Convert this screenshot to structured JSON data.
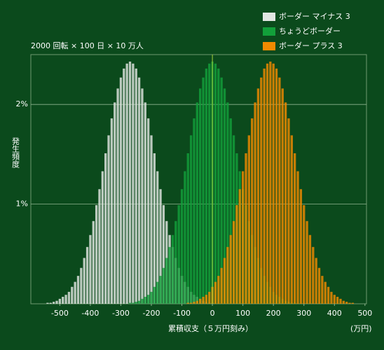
{
  "chart_data": {
    "type": "histogram",
    "subtitle": "2000 回転 × 100 日 × 10 万人",
    "ylabel": "発生頻度",
    "xlabel": "累積収支（５万円刻み）",
    "xunit": "(万円)",
    "bins": [
      -585,
      -575,
      -565,
      -555,
      -545,
      -535,
      -525,
      -515,
      -505,
      -495,
      -485,
      -475,
      -465,
      -455,
      -445,
      -435,
      -425,
      -415,
      -405,
      -395,
      -385,
      -375,
      -365,
      -355,
      -345,
      -335,
      -325,
      -315,
      -305,
      -295,
      -285,
      -275,
      -265,
      -255,
      -245,
      -235,
      -225,
      -215,
      -205,
      -195,
      -185,
      -175,
      -165,
      -155,
      -145,
      -135,
      -125,
      -115,
      -105,
      -95,
      -85,
      -75,
      -65,
      -55,
      -45,
      -35,
      -25,
      -15,
      -5,
      5,
      15,
      25,
      35,
      45,
      55,
      65,
      75,
      85,
      95,
      105,
      115,
      125,
      135,
      145,
      155,
      165,
      175,
      185,
      195,
      205,
      215,
      225,
      235,
      245,
      255,
      265,
      275,
      285,
      295,
      305,
      315,
      325,
      335,
      345,
      355,
      365,
      375,
      385,
      395,
      405,
      415,
      425,
      435,
      445,
      455,
      465,
      475,
      485,
      495
    ],
    "series": [
      {
        "name": "ボーダー マイナス 3",
        "color": "#e2e6e2",
        "values": [
          0,
          0,
          0,
          0,
          0.01,
          0.01,
          0.02,
          0.03,
          0.05,
          0.07,
          0.09,
          0.12,
          0.17,
          0.22,
          0.28,
          0.36,
          0.46,
          0.57,
          0.69,
          0.83,
          0.99,
          1.15,
          1.33,
          1.51,
          1.69,
          1.86,
          2.02,
          2.16,
          2.27,
          2.36,
          2.41,
          2.43,
          2.41,
          2.36,
          2.27,
          2.16,
          2.02,
          1.86,
          1.69,
          1.51,
          1.33,
          1.15,
          0.99,
          0.83,
          0.69,
          0.57,
          0.46,
          0.36,
          0.28,
          0.22,
          0.17,
          0.12,
          0.09,
          0.07,
          0.05,
          0.03,
          0.02,
          0.01,
          0.01,
          0,
          0,
          0,
          0,
          0,
          0,
          0,
          0,
          0,
          0,
          0,
          0,
          0,
          0,
          0,
          0,
          0,
          0,
          0,
          0,
          0,
          0,
          0,
          0,
          0,
          0,
          0,
          0,
          0,
          0,
          0,
          0,
          0,
          0,
          0,
          0,
          0,
          0,
          0,
          0,
          0,
          0,
          0,
          0,
          0,
          0,
          0,
          0,
          0
        ]
      },
      {
        "name": "ちょうどボーダー",
        "color": "#12a03a",
        "values": [
          0,
          0,
          0,
          0,
          0,
          0,
          0,
          0,
          0,
          0,
          0,
          0,
          0,
          0,
          0,
          0,
          0,
          0,
          0,
          0,
          0,
          0,
          0,
          0,
          0,
          0,
          0,
          0,
          0,
          0,
          0,
          0.01,
          0.01,
          0.02,
          0.03,
          0.05,
          0.07,
          0.09,
          0.12,
          0.17,
          0.22,
          0.28,
          0.36,
          0.46,
          0.57,
          0.69,
          0.83,
          0.99,
          1.15,
          1.33,
          1.51,
          1.69,
          1.86,
          2.02,
          2.16,
          2.27,
          2.36,
          2.41,
          2.43,
          2.41,
          2.36,
          2.27,
          2.16,
          2.02,
          1.86,
          1.69,
          1.51,
          1.33,
          1.15,
          0.99,
          0.83,
          0.69,
          0.57,
          0.46,
          0.36,
          0.28,
          0.22,
          0.17,
          0.12,
          0.09,
          0.07,
          0.05,
          0.03,
          0.02,
          0.01,
          0.01,
          0,
          0,
          0,
          0,
          0,
          0,
          0,
          0,
          0,
          0,
          0,
          0,
          0,
          0,
          0,
          0,
          0,
          0,
          0,
          0,
          0,
          0
        ]
      },
      {
        "name": "ボーダー プラス 3",
        "color": "#f08a00",
        "values": [
          0,
          0,
          0,
          0,
          0,
          0,
          0,
          0,
          0,
          0,
          0,
          0,
          0,
          0,
          0,
          0,
          0,
          0,
          0,
          0,
          0,
          0,
          0,
          0,
          0,
          0,
          0,
          0,
          0,
          0,
          0,
          0,
          0,
          0,
          0,
          0,
          0,
          0,
          0,
          0,
          0,
          0,
          0,
          0,
          0,
          0,
          0,
          0,
          0,
          0,
          0.01,
          0.01,
          0.02,
          0.03,
          0.05,
          0.07,
          0.09,
          0.12,
          0.17,
          0.22,
          0.28,
          0.36,
          0.46,
          0.57,
          0.69,
          0.83,
          0.99,
          1.15,
          1.33,
          1.51,
          1.69,
          1.86,
          2.02,
          2.16,
          2.27,
          2.36,
          2.41,
          2.43,
          2.41,
          2.36,
          2.27,
          2.16,
          2.02,
          1.86,
          1.69,
          1.51,
          1.33,
          1.15,
          0.99,
          0.83,
          0.69,
          0.57,
          0.46,
          0.36,
          0.28,
          0.22,
          0.17,
          0.12,
          0.09,
          0.07,
          0.05,
          0.03,
          0.02,
          0.01,
          0.01,
          0,
          0,
          0
        ]
      }
    ],
    "xlim": [
      -595,
      505
    ],
    "xticks": [
      -500,
      -400,
      -300,
      -200,
      -100,
      0,
      100,
      200,
      300,
      400,
      500
    ],
    "ylim": [
      0,
      2.5
    ],
    "yticks": [
      {
        "value": 1,
        "label": "1%"
      },
      {
        "value": 2,
        "label": "2%"
      }
    ],
    "grid": true,
    "legend": "top-right"
  }
}
